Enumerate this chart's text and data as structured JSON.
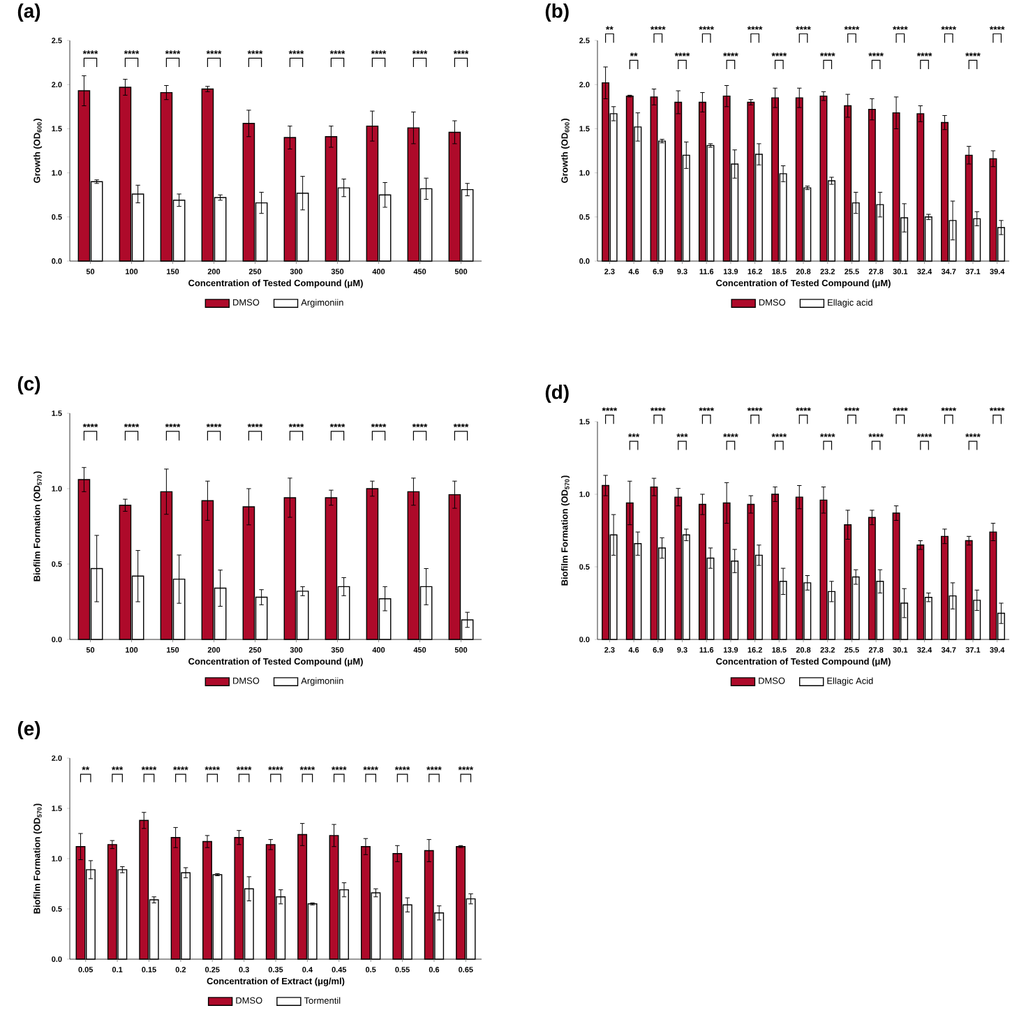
{
  "chart_data": [
    {
      "type": "bar",
      "title": "(a)",
      "xlabel": "Concentration of Tested Compound (μM)",
      "ylabel": "Growth (OD$_{600}$)",
      "legend": "bottom",
      "categories": [
        "50",
        "100",
        "150",
        "200",
        "250",
        "300",
        "350",
        "400",
        "450",
        "500"
      ],
      "series": [
        {
          "name": "DMSO",
          "color": "#ae0a2a",
          "values": [
            1.93,
            1.97,
            1.91,
            1.95,
            1.56,
            1.4,
            1.41,
            1.53,
            1.51,
            1.46
          ],
          "errors": [
            0.17,
            0.09,
            0.08,
            0.03,
            0.15,
            0.13,
            0.12,
            0.17,
            0.18,
            0.13
          ]
        },
        {
          "name": "Argimoniin",
          "color": "#ffffff",
          "values": [
            0.9,
            0.76,
            0.69,
            0.72,
            0.66,
            0.77,
            0.83,
            0.75,
            0.82,
            0.81
          ],
          "errors": [
            0.02,
            0.1,
            0.07,
            0.03,
            0.12,
            0.19,
            0.1,
            0.14,
            0.12,
            0.07
          ]
        }
      ],
      "ylim": [
        0,
        2.5
      ],
      "yticks": [
        {
          "value": 0,
          "label": "0.0"
        },
        {
          "value": 0.5,
          "label": "0.5"
        },
        {
          "value": 1,
          "label": "1.0"
        },
        {
          "value": 1.5,
          "label": "1.5"
        },
        {
          "value": 2,
          "label": "2.0"
        },
        {
          "value": 2.5,
          "label": "2.5"
        }
      ],
      "annotations": [
        "****",
        "****",
        "****",
        "****",
        "****",
        "****",
        "****",
        "****",
        "****",
        "****"
      ]
    },
    {
      "type": "bar",
      "title": "(b)",
      "xlabel": "Concentration of Tested Compound (μM)",
      "ylabel": "Growth (OD$_{600}$)",
      "legend": "bottom",
      "categories": [
        "2.3",
        "4.6",
        "6.9",
        "9.3",
        "11.6",
        "13.9",
        "16.2",
        "18.5",
        "20.8",
        "23.2",
        "25.5",
        "27.8",
        "30.1",
        "32.4",
        "34.7",
        "37.1",
        "39.4"
      ],
      "series": [
        {
          "name": "DMSO",
          "color": "#ae0a2a",
          "values": [
            2.02,
            1.87,
            1.86,
            1.8,
            1.8,
            1.87,
            1.8,
            1.85,
            1.85,
            1.87,
            1.76,
            1.72,
            1.68,
            1.67,
            1.57,
            1.2,
            1.16
          ],
          "errors": [
            0.18,
            0.01,
            0.09,
            0.13,
            0.11,
            0.12,
            0.03,
            0.11,
            0.11,
            0.05,
            0.13,
            0.12,
            0.18,
            0.09,
            0.08,
            0.1,
            0.09
          ]
        },
        {
          "name": "Ellagic acid",
          "color": "#ffffff",
          "values": [
            1.67,
            1.52,
            1.36,
            1.2,
            1.31,
            1.1,
            1.21,
            0.99,
            0.83,
            0.91,
            0.66,
            0.64,
            0.49,
            0.5,
            0.46,
            0.48,
            0.38
          ],
          "errors": [
            0.08,
            0.16,
            0.02,
            0.15,
            0.02,
            0.16,
            0.12,
            0.09,
            0.02,
            0.04,
            0.12,
            0.14,
            0.16,
            0.03,
            0.22,
            0.08,
            0.08
          ]
        }
      ],
      "ylim": [
        0,
        2.5
      ],
      "yticks": [
        {
          "value": 0,
          "label": "0.0"
        },
        {
          "value": 0.5,
          "label": "0.5"
        },
        {
          "value": 1,
          "label": "1.0"
        },
        {
          "value": 1.5,
          "label": "1.5"
        },
        {
          "value": 2,
          "label": "2.0"
        },
        {
          "value": 2.5,
          "label": "2.5"
        }
      ],
      "annotations": [
        "**",
        "**",
        "****",
        "****",
        "****",
        "****",
        "****",
        "****",
        "****",
        "****",
        "****",
        "****",
        "****",
        "****",
        "****",
        "****",
        "****"
      ]
    },
    {
      "type": "bar",
      "title": "(c)",
      "xlabel": "Concentration of Tested Compound (μM)",
      "ylabel": "Biofilm Formation (OD$_{570}$)",
      "legend": "bottom",
      "categories": [
        "50",
        "100",
        "150",
        "200",
        "250",
        "300",
        "350",
        "400",
        "450",
        "500"
      ],
      "series": [
        {
          "name": "DMSO",
          "color": "#ae0a2a",
          "values": [
            1.06,
            0.89,
            0.98,
            0.92,
            0.88,
            0.94,
            0.94,
            1.0,
            0.98,
            0.96
          ],
          "errors": [
            0.08,
            0.04,
            0.15,
            0.13,
            0.12,
            0.13,
            0.05,
            0.05,
            0.09,
            0.09
          ]
        },
        {
          "name": "Argimoniin",
          "color": "#ffffff",
          "values": [
            0.47,
            0.42,
            0.4,
            0.34,
            0.28,
            0.32,
            0.35,
            0.27,
            0.35,
            0.13
          ],
          "errors": [
            0.22,
            0.17,
            0.16,
            0.12,
            0.05,
            0.03,
            0.06,
            0.08,
            0.12,
            0.05
          ]
        }
      ],
      "ylim": [
        0,
        1.5
      ],
      "yticks": [
        {
          "value": 0,
          "label": "0.0"
        },
        {
          "value": 0.5,
          "label": "0.5"
        },
        {
          "value": 1,
          "label": "1.0"
        },
        {
          "value": 1.5,
          "label": "1.5"
        }
      ],
      "annotations": [
        "****",
        "****",
        "****",
        "****",
        "****",
        "****",
        "****",
        "****",
        "****",
        "****"
      ]
    },
    {
      "type": "bar",
      "title": "(d)",
      "xlabel": "Concentration of Tested Compound (μM)",
      "ylabel": "Biofilm Formation (OD$_{570}$)",
      "legend": "bottom",
      "categories": [
        "2.3",
        "4.6",
        "6.9",
        "9.3",
        "11.6",
        "13.9",
        "16.2",
        "18.5",
        "20.8",
        "23.2",
        "25.5",
        "27.8",
        "30.1",
        "32.4",
        "34.7",
        "37.1",
        "39.4"
      ],
      "series": [
        {
          "name": "DMSO",
          "color": "#ae0a2a",
          "values": [
            1.06,
            0.94,
            1.05,
            0.98,
            0.93,
            0.94,
            0.93,
            1.0,
            0.98,
            0.96,
            0.79,
            0.84,
            0.87,
            0.65,
            0.71,
            0.68,
            0.74
          ],
          "errors": [
            0.07,
            0.15,
            0.06,
            0.06,
            0.07,
            0.14,
            0.06,
            0.05,
            0.08,
            0.09,
            0.1,
            0.05,
            0.05,
            0.03,
            0.05,
            0.03,
            0.06
          ]
        },
        {
          "name": "Ellagic Acid",
          "color": "#ffffff",
          "values": [
            0.72,
            0.66,
            0.63,
            0.72,
            0.56,
            0.54,
            0.58,
            0.4,
            0.39,
            0.33,
            0.43,
            0.4,
            0.25,
            0.29,
            0.3,
            0.27,
            0.18
          ],
          "errors": [
            0.14,
            0.08,
            0.07,
            0.04,
            0.07,
            0.08,
            0.07,
            0.09,
            0.05,
            0.07,
            0.05,
            0.08,
            0.1,
            0.03,
            0.09,
            0.07,
            0.07
          ]
        }
      ],
      "ylim": [
        0,
        1.5
      ],
      "yticks": [
        {
          "value": 0,
          "label": "0.0"
        },
        {
          "value": 0.5,
          "label": "0.5"
        },
        {
          "value": 1,
          "label": "1.0"
        },
        {
          "value": 1.5,
          "label": "1.5"
        }
      ],
      "annotations": [
        "****",
        "***",
        "****",
        "***",
        "****",
        "****",
        "****",
        "****",
        "****",
        "****",
        "****",
        "****",
        "****",
        "****",
        "****",
        "****",
        "****"
      ]
    },
    {
      "type": "bar",
      "title": "(e)",
      "xlabel": "Concentration of Extract (μg/ml)",
      "ylabel": "Biofilm Formation (OD$_{570}$)",
      "legend": "bottom",
      "categories": [
        "0.05",
        "0.1",
        "0.15",
        "0.2",
        "0.25",
        "0.3",
        "0.35",
        "0.4",
        "0.45",
        "0.5",
        "0.55",
        "0.6",
        "0.65"
      ],
      "series": [
        {
          "name": "DMSO",
          "color": "#ae0a2a",
          "values": [
            1.12,
            1.14,
            1.38,
            1.21,
            1.17,
            1.21,
            1.14,
            1.24,
            1.23,
            1.12,
            1.05,
            1.08,
            1.12
          ],
          "errors": [
            0.13,
            0.04,
            0.08,
            0.1,
            0.06,
            0.07,
            0.05,
            0.11,
            0.11,
            0.08,
            0.08,
            0.11,
            0.01
          ]
        },
        {
          "name": "Tormentil",
          "color": "#ffffff",
          "values": [
            0.89,
            0.89,
            0.59,
            0.86,
            0.84,
            0.7,
            0.62,
            0.55,
            0.69,
            0.66,
            0.54,
            0.46,
            0.6
          ],
          "errors": [
            0.09,
            0.03,
            0.03,
            0.05,
            0.01,
            0.12,
            0.07,
            0.01,
            0.07,
            0.04,
            0.07,
            0.07,
            0.05
          ]
        }
      ],
      "ylim": [
        0,
        2
      ],
      "yticks": [
        {
          "value": 0,
          "label": "0.0"
        },
        {
          "value": 0.5,
          "label": "0.5"
        },
        {
          "value": 1,
          "label": "1.0"
        },
        {
          "value": 1.5,
          "label": "1.5"
        },
        {
          "value": 2,
          "label": "2.0"
        }
      ],
      "annotations": [
        "**",
        "***",
        "****",
        "****",
        "****",
        "****",
        "****",
        "****",
        "****",
        "****",
        "****",
        "****",
        "****"
      ]
    }
  ]
}
